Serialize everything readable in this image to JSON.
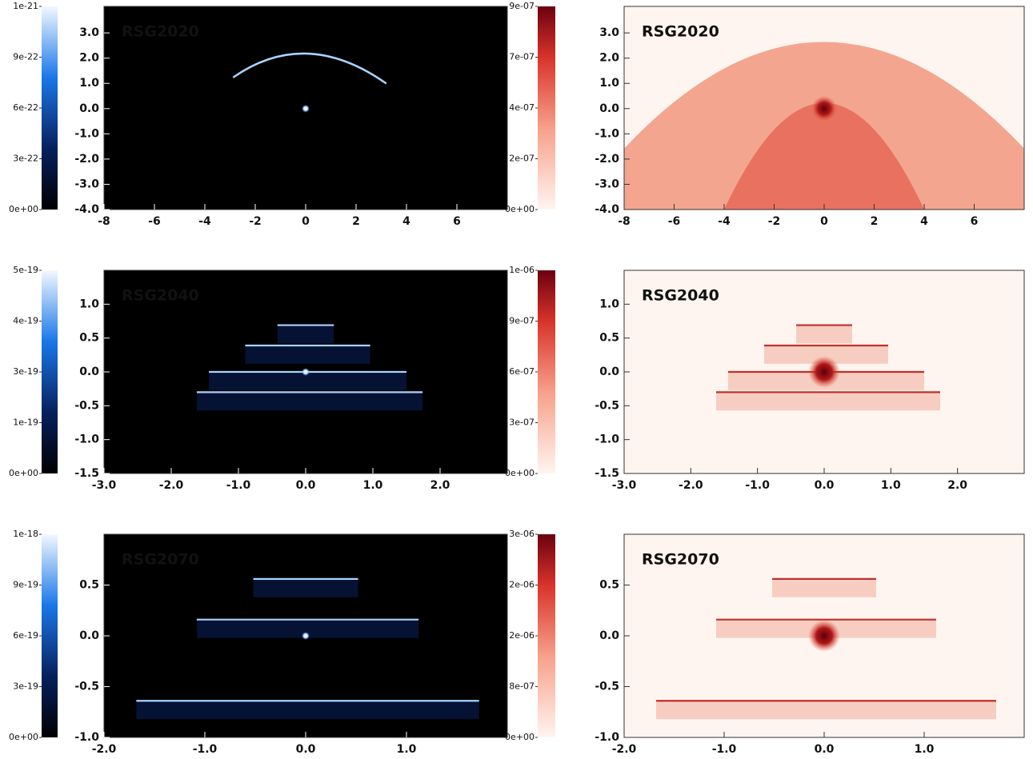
{
  "chart_data": [
    {
      "type": "image",
      "label": "RSG2020",
      "colormap": "blue",
      "xlim": [
        -8,
        8
      ],
      "xticks": [
        -8,
        -6,
        -4,
        -2,
        0,
        2,
        4,
        6
      ],
      "ylim": [
        -4,
        4.05
      ],
      "yticks": [
        {
          "value": -4,
          "label": "-4.0"
        },
        {
          "value": -3,
          "label": "-3.0"
        },
        {
          "value": -2,
          "label": "-2.0"
        },
        {
          "value": -1,
          "label": "-1.0"
        },
        {
          "value": 0,
          "label": "0.0"
        },
        {
          "value": 1,
          "label": "1.0"
        },
        {
          "value": 2,
          "label": "2.0"
        },
        {
          "value": 3,
          "label": "3.0"
        }
      ],
      "colorbar": {
        "lim": [
          0,
          1.2e-21
        ],
        "ticks": [
          {
            "value": 0,
            "label": "0e+00"
          },
          {
            "value": 3e-22,
            "label": "3e-22"
          },
          {
            "value": 6e-22,
            "label": "6e-22"
          },
          {
            "value": 9e-22,
            "label": "9e-22"
          },
          {
            "value": 1.2e-21,
            "label": "1e-21"
          }
        ]
      }
    },
    {
      "type": "image",
      "label": "RSG2020",
      "colormap": "red",
      "xlim": [
        -8,
        8
      ],
      "xticks": [
        -8,
        -6,
        -4,
        -2,
        0,
        2,
        4,
        6
      ],
      "ylim": [
        -4,
        4.05
      ],
      "yticks": [
        {
          "value": -4,
          "label": "-4.0"
        },
        {
          "value": -3,
          "label": "-3.0"
        },
        {
          "value": -2,
          "label": "-2.0"
        },
        {
          "value": -1,
          "label": "-1.0"
        },
        {
          "value": 0,
          "label": "0.0"
        },
        {
          "value": 1,
          "label": "1.0"
        },
        {
          "value": 2,
          "label": "2.0"
        },
        {
          "value": 3,
          "label": "3.0"
        }
      ],
      "colorbar": {
        "lim": [
          0,
          9e-07
        ],
        "ticks": [
          {
            "value": 0,
            "label": "0e+00"
          },
          {
            "value": 2.25e-07,
            "label": "2e-07"
          },
          {
            "value": 4.5e-07,
            "label": "4e-07"
          },
          {
            "value": 6.75e-07,
            "label": "7e-07"
          },
          {
            "value": 9e-07,
            "label": "9e-07"
          }
        ]
      }
    },
    {
      "type": "image",
      "label": "RSG2040",
      "colormap": "blue",
      "xlim": [
        -3,
        3
      ],
      "xticks": [
        {
          "value": -3,
          "label": "-3.0"
        },
        {
          "value": -2,
          "label": "-2.0"
        },
        {
          "value": -1,
          "label": "-1.0"
        },
        {
          "value": 0,
          "label": "0.0"
        },
        {
          "value": 1,
          "label": "1.0"
        },
        {
          "value": 2,
          "label": "2.0"
        }
      ],
      "ylim": [
        -1.5,
        1.5
      ],
      "yticks": [
        -1.5,
        {
          "value": -1,
          "label": "-1.0"
        },
        -0.5,
        {
          "value": 0,
          "label": "0.0"
        },
        0.5,
        {
          "value": 1,
          "label": "1.0"
        }
      ],
      "colorbar": {
        "lim": [
          0,
          5e-19
        ],
        "ticks": [
          {
            "value": 0,
            "label": "0e+00"
          },
          {
            "value": 1.25e-19,
            "label": "1e-19"
          },
          {
            "value": 2.5e-19,
            "label": "3e-19"
          },
          {
            "value": 3.75e-19,
            "label": "4e-19"
          },
          {
            "value": 5e-19,
            "label": "5e-19"
          }
        ]
      }
    },
    {
      "type": "image",
      "label": "RSG2040",
      "colormap": "red",
      "xlim": [
        -3,
        3
      ],
      "xticks": [
        {
          "value": -3,
          "label": "-3.0"
        },
        {
          "value": -2,
          "label": "-2.0"
        },
        {
          "value": -1,
          "label": "-1.0"
        },
        {
          "value": 0,
          "label": "0.0"
        },
        {
          "value": 1,
          "label": "1.0"
        },
        {
          "value": 2,
          "label": "2.0"
        }
      ],
      "ylim": [
        -1.5,
        1.5
      ],
      "yticks": [
        -1.5,
        {
          "value": -1,
          "label": "-1.0"
        },
        -0.5,
        {
          "value": 0,
          "label": "0.0"
        },
        0.5,
        {
          "value": 1,
          "label": "1.0"
        }
      ],
      "colorbar": {
        "lim": [
          0,
          1.2e-06
        ],
        "ticks": [
          {
            "value": 0,
            "label": "0e+00"
          },
          {
            "value": 3e-07,
            "label": "3e-07"
          },
          {
            "value": 6e-07,
            "label": "6e-07"
          },
          {
            "value": 9e-07,
            "label": "9e-07"
          },
          {
            "value": 1.2e-06,
            "label": "1e-06"
          }
        ]
      }
    },
    {
      "type": "image",
      "label": "RSG2070",
      "colormap": "blue",
      "xlim": [
        -2,
        2
      ],
      "xticks": [
        {
          "value": -2,
          "label": "-2.0"
        },
        {
          "value": -1,
          "label": "-1.0"
        },
        {
          "value": 0,
          "label": "0.0"
        },
        {
          "value": 1,
          "label": "1.0"
        }
      ],
      "ylim": [
        -1,
        1
      ],
      "yticks": [
        {
          "value": -1,
          "label": "-1.0"
        },
        -0.5,
        {
          "value": 0,
          "label": "0.0"
        },
        0.5
      ],
      "colorbar": {
        "lim": [
          0,
          1.2e-18
        ],
        "ticks": [
          {
            "value": 0,
            "label": "0e+00"
          },
          {
            "value": 3e-19,
            "label": "3e-19"
          },
          {
            "value": 6e-19,
            "label": "6e-19"
          },
          {
            "value": 9e-19,
            "label": "9e-19"
          },
          {
            "value": 1.2e-18,
            "label": "1e-18"
          }
        ]
      }
    },
    {
      "type": "image",
      "label": "RSG2070",
      "colormap": "red",
      "xlim": [
        -2,
        2
      ],
      "xticks": [
        {
          "value": -2,
          "label": "-2.0"
        },
        {
          "value": -1,
          "label": "-1.0"
        },
        {
          "value": 0,
          "label": "0.0"
        },
        {
          "value": 1,
          "label": "1.0"
        }
      ],
      "ylim": [
        -1,
        1
      ],
      "yticks": [
        {
          "value": -1,
          "label": "-1.0"
        },
        -0.5,
        {
          "value": 0,
          "label": "0.0"
        },
        0.5
      ],
      "colorbar": {
        "lim": [
          0,
          3.2e-06
        ],
        "ticks": [
          {
            "value": 0,
            "label": "0e+00"
          },
          {
            "value": 8e-07,
            "label": "8e-07"
          },
          {
            "value": 1.6e-06,
            "label": "2e-06"
          },
          {
            "value": 2.4e-06,
            "label": "2e-06"
          },
          {
            "value": 3.2e-06,
            "label": "3e-06"
          }
        ]
      }
    }
  ]
}
